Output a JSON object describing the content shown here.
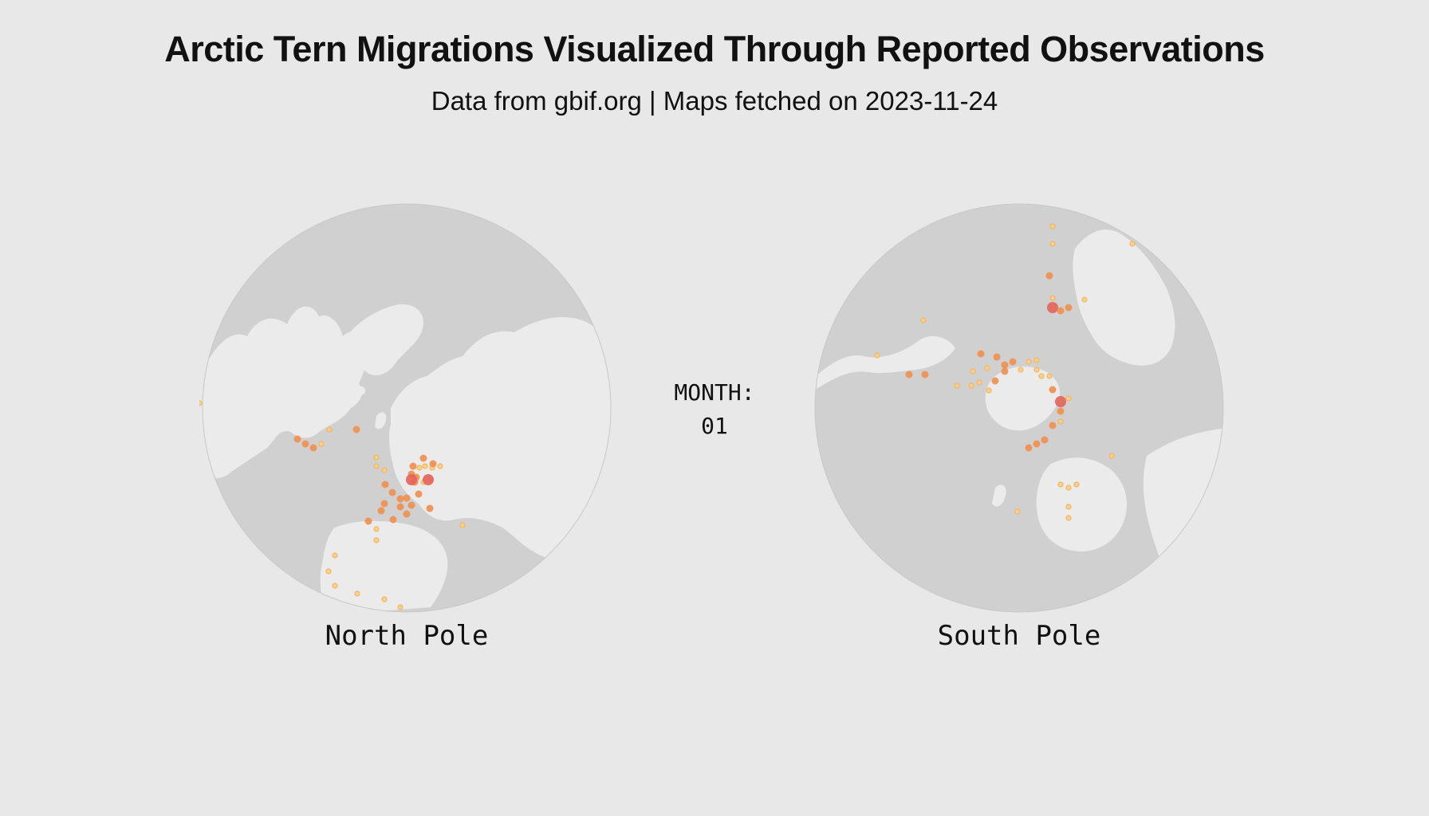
{
  "header": {
    "title": "Arctic Tern Migrations Visualized Through Reported Observations",
    "subtitle": "Data from gbif.org | Maps fetched on 2023-11-24"
  },
  "month": {
    "label": "MONTH:",
    "value": "01"
  },
  "maps": {
    "north": {
      "label": "North Pole"
    },
    "south": {
      "label": "South Pole"
    }
  },
  "colors": {
    "background": "#e8e8e8",
    "ocean": "#d0d0d0",
    "land": "#ebebeb",
    "observation_low": "#f6b35a",
    "observation_mid": "#ef8f4e",
    "observation_high": "#e3635a"
  }
}
